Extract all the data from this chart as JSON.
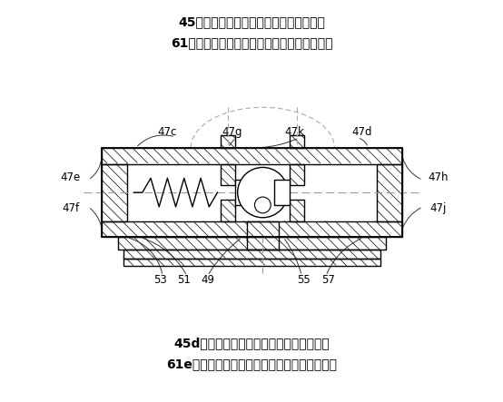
{
  "title_top_line1": "45（第４の実施形態、第５の実施形態）",
  "title_top_line2": "61（第１０の実施形態、第１１の実施形態）",
  "title_bottom_line1": "45d（第４の実施形態、第５の実施形態）",
  "title_bottom_line2": "61e（第１０の実施形態、第１１の実施形態）",
  "bg_color": "#ffffff",
  "line_color": "#000000"
}
